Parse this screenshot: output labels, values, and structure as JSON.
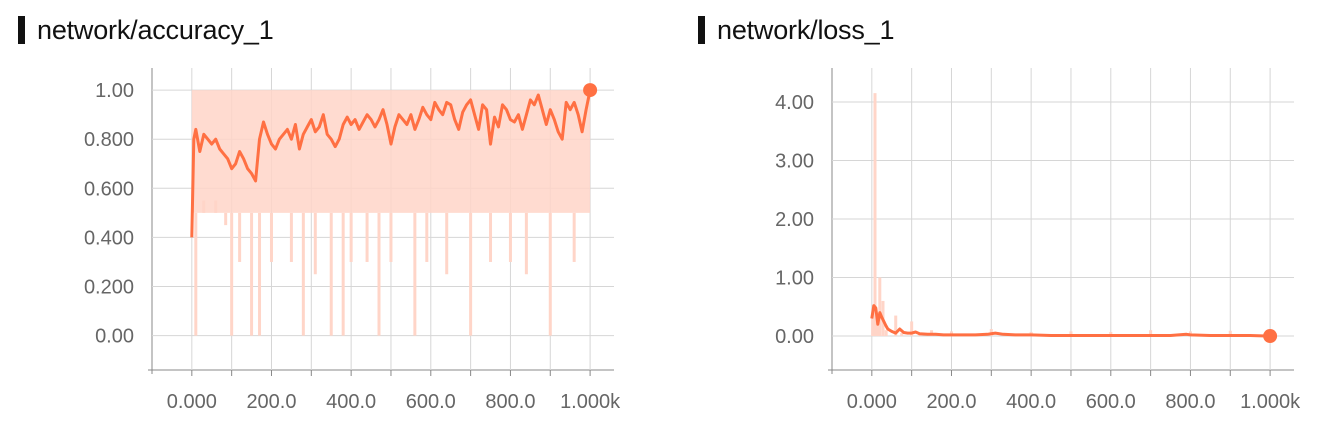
{
  "chart_data": [
    {
      "type": "line",
      "title": "network/accuracy_1",
      "xlabel": "",
      "ylabel": "",
      "xlim": [
        -100,
        1060
      ],
      "ylim": [
        -0.14,
        1.09
      ],
      "x_ticks": [
        0,
        100,
        200,
        300,
        400,
        500,
        600,
        700,
        800,
        900,
        1000
      ],
      "x_tick_labels": [
        "0.000",
        "200.0",
        "400.0",
        "600.0",
        "800.0",
        "1.000k"
      ],
      "x_labeled_ticks": [
        0,
        200,
        400,
        600,
        800,
        1000
      ],
      "y_ticks": [
        0,
        0.2,
        0.4,
        0.6,
        0.8,
        1.0
      ],
      "y_tick_labels": [
        "0.00",
        "0.200",
        "0.400",
        "0.600",
        "0.800",
        "1.00"
      ],
      "series": [
        {
          "color": "#ff7043",
          "x": [
            0,
            5,
            10,
            20,
            30,
            40,
            50,
            60,
            70,
            80,
            90,
            100,
            110,
            120,
            130,
            140,
            150,
            160,
            170,
            180,
            190,
            200,
            210,
            220,
            230,
            240,
            250,
            260,
            270,
            280,
            290,
            300,
            310,
            320,
            330,
            340,
            350,
            360,
            370,
            380,
            390,
            400,
            410,
            420,
            430,
            440,
            450,
            460,
            470,
            480,
            490,
            500,
            510,
            520,
            530,
            540,
            550,
            560,
            570,
            580,
            590,
            600,
            610,
            620,
            630,
            640,
            650,
            660,
            670,
            680,
            690,
            700,
            710,
            720,
            730,
            740,
            750,
            760,
            770,
            780,
            790,
            800,
            810,
            820,
            830,
            840,
            850,
            860,
            870,
            880,
            890,
            900,
            910,
            920,
            930,
            940,
            950,
            960,
            970,
            980,
            990,
            1000
          ],
          "y": [
            0.4,
            0.8,
            0.84,
            0.75,
            0.82,
            0.8,
            0.78,
            0.8,
            0.76,
            0.74,
            0.72,
            0.68,
            0.7,
            0.75,
            0.72,
            0.68,
            0.66,
            0.63,
            0.8,
            0.87,
            0.82,
            0.78,
            0.76,
            0.8,
            0.82,
            0.84,
            0.8,
            0.86,
            0.76,
            0.82,
            0.85,
            0.88,
            0.83,
            0.85,
            0.9,
            0.82,
            0.8,
            0.77,
            0.8,
            0.86,
            0.89,
            0.86,
            0.88,
            0.84,
            0.87,
            0.9,
            0.88,
            0.85,
            0.88,
            0.92,
            0.86,
            0.78,
            0.85,
            0.9,
            0.88,
            0.86,
            0.9,
            0.84,
            0.88,
            0.93,
            0.9,
            0.88,
            0.95,
            0.92,
            0.9,
            0.95,
            0.94,
            0.88,
            0.84,
            0.91,
            0.94,
            0.96,
            0.9,
            0.84,
            0.94,
            0.92,
            0.78,
            0.89,
            0.85,
            0.94,
            0.92,
            0.88,
            0.87,
            0.9,
            0.84,
            0.9,
            0.96,
            0.94,
            0.98,
            0.92,
            0.86,
            0.92,
            0.88,
            0.83,
            0.8,
            0.95,
            0.92,
            0.95,
            0.9,
            0.83,
            0.92,
            1.0
          ]
        }
      ],
      "raw_band": {
        "color": "#ffd5c8",
        "y_low": 0.5,
        "y_high": 1.0,
        "x_start": 0,
        "x_end": 1000
      },
      "raw_spikes": [
        {
          "x": 10,
          "y": 0.0
        },
        {
          "x": 30,
          "y": 0.55
        },
        {
          "x": 60,
          "y": 0.55
        },
        {
          "x": 85,
          "y": 0.45
        },
        {
          "x": 100,
          "y": 0.0
        },
        {
          "x": 120,
          "y": 0.3
        },
        {
          "x": 150,
          "y": 0.0
        },
        {
          "x": 170,
          "y": 0.0
        },
        {
          "x": 200,
          "y": 0.3
        },
        {
          "x": 250,
          "y": 0.3
        },
        {
          "x": 280,
          "y": 0.0
        },
        {
          "x": 310,
          "y": 0.25
        },
        {
          "x": 350,
          "y": 0.0
        },
        {
          "x": 380,
          "y": 0.0
        },
        {
          "x": 400,
          "y": 0.3
        },
        {
          "x": 440,
          "y": 0.3
        },
        {
          "x": 470,
          "y": 0.0
        },
        {
          "x": 500,
          "y": 0.3
        },
        {
          "x": 560,
          "y": 0.0
        },
        {
          "x": 590,
          "y": 0.3
        },
        {
          "x": 640,
          "y": 0.25
        },
        {
          "x": 700,
          "y": 0.0
        },
        {
          "x": 750,
          "y": 0.3
        },
        {
          "x": 800,
          "y": 0.3
        },
        {
          "x": 840,
          "y": 0.25
        },
        {
          "x": 900,
          "y": 0.0
        },
        {
          "x": 960,
          "y": 0.3
        }
      ],
      "endpoint": {
        "x": 1000,
        "y": 1.0
      },
      "grid": true
    },
    {
      "type": "line",
      "title": "network/loss_1",
      "xlabel": "",
      "ylabel": "",
      "xlim": [
        -100,
        1060
      ],
      "ylim": [
        -0.58,
        4.58
      ],
      "x_ticks": [
        0,
        100,
        200,
        300,
        400,
        500,
        600,
        700,
        800,
        900,
        1000
      ],
      "x_tick_labels": [
        "0.000",
        "200.0",
        "400.0",
        "600.0",
        "800.0",
        "1.000k"
      ],
      "x_labeled_ticks": [
        0,
        200,
        400,
        600,
        800,
        1000
      ],
      "y_ticks": [
        0,
        1,
        2,
        3,
        4
      ],
      "y_tick_labels": [
        "0.00",
        "1.00",
        "2.00",
        "3.00",
        "4.00"
      ],
      "series": [
        {
          "color": "#ff7043",
          "x": [
            0,
            5,
            10,
            15,
            20,
            25,
            30,
            35,
            40,
            50,
            60,
            70,
            80,
            90,
            100,
            110,
            120,
            140,
            160,
            180,
            200,
            230,
            260,
            290,
            310,
            330,
            360,
            400,
            450,
            500,
            550,
            600,
            650,
            700,
            750,
            790,
            800,
            850,
            900,
            950,
            1000
          ],
          "y": [
            0.3,
            0.52,
            0.48,
            0.2,
            0.4,
            0.32,
            0.25,
            0.18,
            0.12,
            0.08,
            0.05,
            0.12,
            0.06,
            0.05,
            0.05,
            0.07,
            0.04,
            0.03,
            0.03,
            0.02,
            0.02,
            0.02,
            0.02,
            0.03,
            0.05,
            0.03,
            0.02,
            0.02,
            0.01,
            0.01,
            0.01,
            0.01,
            0.01,
            0.01,
            0.01,
            0.03,
            0.02,
            0.01,
            0.01,
            0.01,
            0.0
          ]
        }
      ],
      "raw_spikes": [
        {
          "x": 2,
          "y": 0.3
        },
        {
          "x": 8,
          "y": 4.15
        },
        {
          "x": 14,
          "y": 0.2
        },
        {
          "x": 20,
          "y": 1.0
        },
        {
          "x": 28,
          "y": 0.6
        },
        {
          "x": 36,
          "y": 0.1
        },
        {
          "x": 60,
          "y": 0.35
        },
        {
          "x": 75,
          "y": 0.05
        },
        {
          "x": 100,
          "y": 0.25
        },
        {
          "x": 120,
          "y": 0.05
        },
        {
          "x": 150,
          "y": 0.1
        },
        {
          "x": 200,
          "y": 0.08
        },
        {
          "x": 300,
          "y": 0.12
        },
        {
          "x": 400,
          "y": 0.07
        },
        {
          "x": 500,
          "y": 0.08
        },
        {
          "x": 600,
          "y": 0.07
        },
        {
          "x": 700,
          "y": 0.1
        },
        {
          "x": 800,
          "y": 0.08
        },
        {
          "x": 900,
          "y": 0.09
        },
        {
          "x": 1000,
          "y": 0.05
        }
      ],
      "raw_color": "#ffd5c8",
      "endpoint": {
        "x": 1000,
        "y": 0.0
      },
      "grid": true
    }
  ]
}
